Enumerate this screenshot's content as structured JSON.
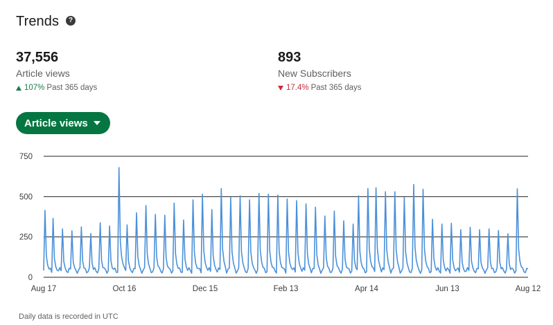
{
  "header": {
    "title": "Trends",
    "help_icon": "question-circle-icon"
  },
  "metrics": [
    {
      "value": "37,556",
      "label": "Article views",
      "change": "107%",
      "direction": "up",
      "period": "Past 365 days"
    },
    {
      "value": "893",
      "label": "New Subscribers",
      "change": "17.4%",
      "direction": "down",
      "period": "Past 365 days"
    }
  ],
  "dropdown": {
    "label": "Article views",
    "icon": "caret-down-icon"
  },
  "footnote": "Daily data is recorded in UTC",
  "colors": {
    "accent": "#057642",
    "up": "#1f7a4c",
    "down": "#c62d3a",
    "line": "#4a90d9"
  },
  "chart_data": {
    "type": "line",
    "ylim": [
      0,
      750
    ],
    "yticks": [
      0,
      250,
      500,
      750
    ],
    "xticks": [
      "Aug 17",
      "Oct 16",
      "Dec 15",
      "Feb 13",
      "Apr 14",
      "Jun 13",
      "Aug 12"
    ],
    "grid": true,
    "series": [
      {
        "weekly_peaks": [
          {
            "date": "Aug 18",
            "value": 415
          },
          {
            "date": "Aug 24",
            "value": 365
          },
          {
            "date": "Aug 31",
            "value": 300
          },
          {
            "date": "Sep 7",
            "value": 288
          },
          {
            "date": "Sep 14",
            "value": 312
          },
          {
            "date": "Sep 21",
            "value": 272
          },
          {
            "date": "Sep 28",
            "value": 338
          },
          {
            "date": "Oct 5",
            "value": 318
          },
          {
            "date": "Oct 12",
            "value": 680
          },
          {
            "date": "Oct 18",
            "value": 325
          },
          {
            "date": "Oct 25",
            "value": 400
          },
          {
            "date": "Nov 1",
            "value": 445
          },
          {
            "date": "Nov 8",
            "value": 390
          },
          {
            "date": "Nov 15",
            "value": 385
          },
          {
            "date": "Nov 22",
            "value": 460
          },
          {
            "date": "Nov 29",
            "value": 355
          },
          {
            "date": "Dec 6",
            "value": 480
          },
          {
            "date": "Dec 13",
            "value": 515
          },
          {
            "date": "Dec 20",
            "value": 420
          },
          {
            "date": "Dec 27",
            "value": 550
          },
          {
            "date": "Jan 3",
            "value": 495
          },
          {
            "date": "Jan 10",
            "value": 505
          },
          {
            "date": "Jan 17",
            "value": 480
          },
          {
            "date": "Jan 24",
            "value": 520
          },
          {
            "date": "Jan 31",
            "value": 515
          },
          {
            "date": "Feb 7",
            "value": 510
          },
          {
            "date": "Feb 14",
            "value": 485
          },
          {
            "date": "Feb 21",
            "value": 475
          },
          {
            "date": "Feb 28",
            "value": 455
          },
          {
            "date": "Mar 7",
            "value": 435
          },
          {
            "date": "Mar 14",
            "value": 380
          },
          {
            "date": "Mar 21",
            "value": 410
          },
          {
            "date": "Mar 28",
            "value": 350
          },
          {
            "date": "Apr 4",
            "value": 330
          },
          {
            "date": "Apr 8",
            "value": 505
          },
          {
            "date": "Apr 15",
            "value": 550
          },
          {
            "date": "Apr 21",
            "value": 555
          },
          {
            "date": "Apr 28",
            "value": 530
          },
          {
            "date": "May 5",
            "value": 530
          },
          {
            "date": "May 12",
            "value": 495
          },
          {
            "date": "May 19",
            "value": 575
          },
          {
            "date": "May 26",
            "value": 545
          },
          {
            "date": "Jun 2",
            "value": 360
          },
          {
            "date": "Jun 9",
            "value": 330
          },
          {
            "date": "Jun 16",
            "value": 335
          },
          {
            "date": "Jun 23",
            "value": 295
          },
          {
            "date": "Jun 30",
            "value": 310
          },
          {
            "date": "Jul 7",
            "value": 295
          },
          {
            "date": "Jul 14",
            "value": 300
          },
          {
            "date": "Jul 21",
            "value": 290
          },
          {
            "date": "Jul 28",
            "value": 270
          },
          {
            "date": "Aug 4",
            "value": 548
          }
        ],
        "baseline_low": 25,
        "baseline_high": 75
      }
    ]
  }
}
